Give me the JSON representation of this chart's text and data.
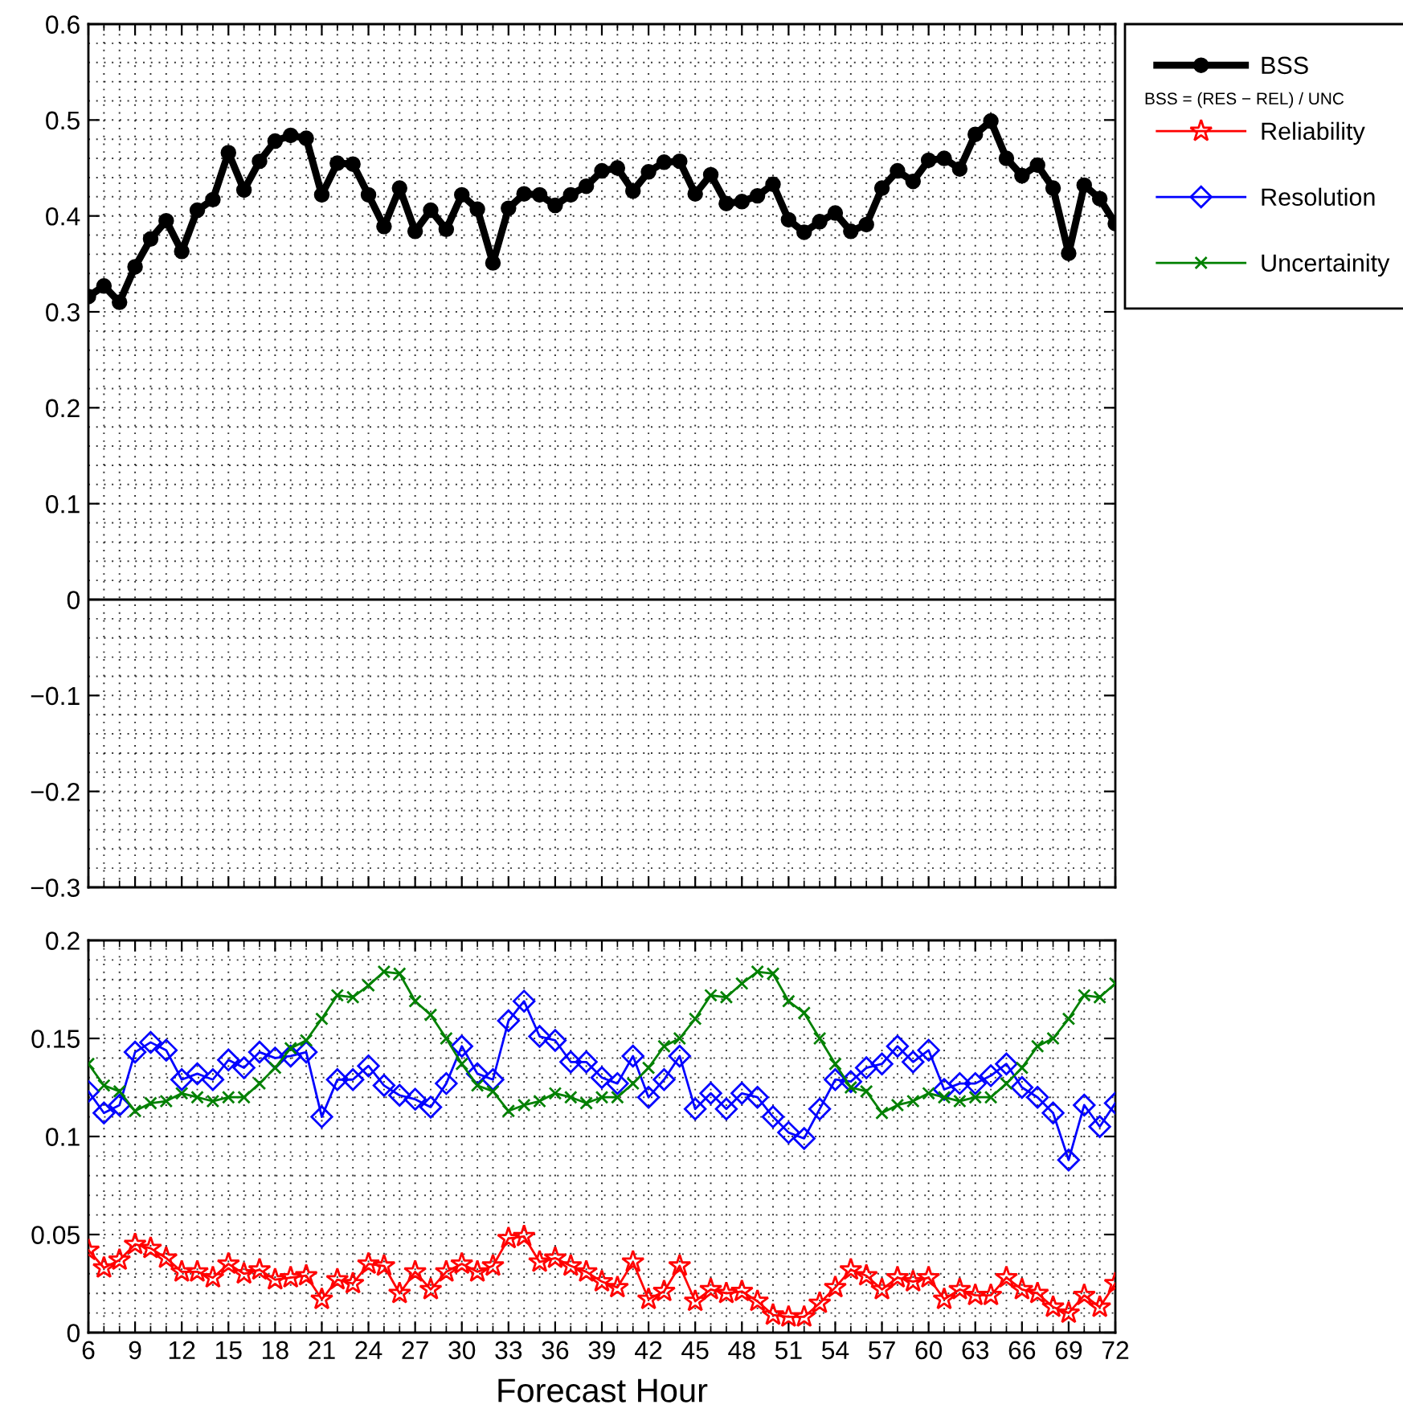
{
  "chart_data": [
    {
      "type": "line",
      "x": [
        6,
        7,
        8,
        9,
        10,
        11,
        12,
        13,
        14,
        15,
        16,
        17,
        18,
        19,
        20,
        21,
        22,
        23,
        24,
        25,
        26,
        27,
        28,
        29,
        30,
        31,
        32,
        33,
        34,
        35,
        36,
        37,
        38,
        39,
        40,
        41,
        42,
        43,
        44,
        45,
        46,
        47,
        48,
        49,
        50,
        51,
        52,
        53,
        54,
        55,
        56,
        57,
        58,
        59,
        60,
        61,
        62,
        63,
        64,
        65,
        66,
        67,
        68,
        69,
        70,
        71,
        72
      ],
      "series": [
        {
          "name": "BSS",
          "color": "#000000",
          "marker": "circle",
          "values": [
            0.316,
            0.327,
            0.31,
            0.347,
            0.376,
            0.395,
            0.363,
            0.406,
            0.417,
            0.466,
            0.427,
            0.457,
            0.478,
            0.484,
            0.481,
            0.422,
            0.455,
            0.454,
            0.422,
            0.389,
            0.429,
            0.384,
            0.406,
            0.386,
            0.422,
            0.407,
            0.351,
            0.408,
            0.423,
            0.422,
            0.411,
            0.422,
            0.431,
            0.447,
            0.45,
            0.426,
            0.446,
            0.456,
            0.457,
            0.423,
            0.443,
            0.413,
            0.415,
            0.421,
            0.433,
            0.396,
            0.383,
            0.394,
            0.403,
            0.384,
            0.391,
            0.429,
            0.447,
            0.436,
            0.458,
            0.46,
            0.449,
            0.485,
            0.499,
            0.46,
            0.442,
            0.453,
            0.429,
            0.361,
            0.432,
            0.418,
            0.392
          ]
        }
      ],
      "xlim": [
        6,
        72
      ],
      "xticks": [
        6,
        9,
        12,
        15,
        18,
        21,
        24,
        27,
        30,
        33,
        36,
        39,
        42,
        45,
        48,
        51,
        54,
        57,
        60,
        63,
        66,
        69,
        72
      ],
      "ylim": [
        -0.3,
        0.6
      ],
      "yticks": [
        {
          "value": -0.3,
          "label": "−0.3"
        },
        {
          "value": -0.2,
          "label": "−0.2"
        },
        {
          "value": -0.1,
          "label": "−0.1"
        },
        0,
        0.1,
        0.2,
        0.3,
        0.4,
        0.5,
        0.6
      ],
      "tick_labels": "y",
      "grid": true,
      "legend": "top right",
      "ref_lines": [
        {
          "axis": "y",
          "value": 0,
          "color": "#000000"
        }
      ],
      "annotations": [
        "BSS = (RES − REL) / UNC"
      ]
    },
    {
      "type": "line",
      "x": [
        6,
        7,
        8,
        9,
        10,
        11,
        12,
        13,
        14,
        15,
        16,
        17,
        18,
        19,
        20,
        21,
        22,
        23,
        24,
        25,
        26,
        27,
        28,
        29,
        30,
        31,
        32,
        33,
        34,
        35,
        36,
        37,
        38,
        39,
        40,
        41,
        42,
        43,
        44,
        45,
        46,
        47,
        48,
        49,
        50,
        51,
        52,
        53,
        54,
        55,
        56,
        57,
        58,
        59,
        60,
        61,
        62,
        63,
        64,
        65,
        66,
        67,
        68,
        69,
        70,
        71,
        72
      ],
      "series": [
        {
          "name": "Reliability",
          "color": "#ff0000",
          "marker": "star",
          "values": [
            0.042,
            0.033,
            0.037,
            0.045,
            0.043,
            0.038,
            0.031,
            0.031,
            0.028,
            0.035,
            0.03,
            0.032,
            0.027,
            0.028,
            0.029,
            0.017,
            0.027,
            0.025,
            0.035,
            0.034,
            0.02,
            0.031,
            0.022,
            0.031,
            0.035,
            0.031,
            0.034,
            0.048,
            0.049,
            0.036,
            0.038,
            0.034,
            0.031,
            0.026,
            0.023,
            0.036,
            0.017,
            0.021,
            0.034,
            0.016,
            0.022,
            0.02,
            0.021,
            0.016,
            0.009,
            0.008,
            0.008,
            0.015,
            0.023,
            0.032,
            0.029,
            0.022,
            0.028,
            0.026,
            0.028,
            0.017,
            0.022,
            0.019,
            0.019,
            0.028,
            0.022,
            0.02,
            0.013,
            0.01,
            0.019,
            0.013,
            0.025
          ]
        },
        {
          "name": "Resolution",
          "color": "#0000ff",
          "marker": "diamond",
          "values": [
            0.123,
            0.112,
            0.116,
            0.143,
            0.148,
            0.144,
            0.129,
            0.132,
            0.129,
            0.139,
            0.135,
            0.143,
            0.14,
            0.141,
            0.143,
            0.11,
            0.129,
            0.129,
            0.136,
            0.126,
            0.121,
            0.119,
            0.115,
            0.127,
            0.146,
            0.132,
            0.129,
            0.159,
            0.169,
            0.151,
            0.149,
            0.138,
            0.138,
            0.13,
            0.127,
            0.141,
            0.12,
            0.129,
            0.141,
            0.114,
            0.122,
            0.114,
            0.122,
            0.12,
            0.11,
            0.102,
            0.099,
            0.114,
            0.129,
            0.128,
            0.135,
            0.137,
            0.146,
            0.138,
            0.144,
            0.124,
            0.127,
            0.127,
            0.131,
            0.137,
            0.125,
            0.12,
            0.112,
            0.088,
            0.116,
            0.105,
            0.117
          ]
        },
        {
          "name": "Uncertainity",
          "color": "#008000",
          "marker": "cross",
          "values": [
            0.137,
            0.126,
            0.123,
            0.113,
            0.117,
            0.118,
            0.122,
            0.12,
            0.118,
            0.12,
            0.12,
            0.127,
            0.135,
            0.145,
            0.149,
            0.16,
            0.172,
            0.171,
            0.177,
            0.184,
            0.183,
            0.169,
            0.162,
            0.15,
            0.137,
            0.126,
            0.123,
            0.113,
            0.116,
            0.118,
            0.122,
            0.12,
            0.117,
            0.12,
            0.12,
            0.127,
            0.135,
            0.146,
            0.15,
            0.16,
            0.172,
            0.171,
            0.178,
            0.184,
            0.183,
            0.169,
            0.163,
            0.15,
            0.137,
            0.125,
            0.123,
            0.112,
            0.116,
            0.118,
            0.122,
            0.12,
            0.118,
            0.12,
            0.12,
            0.127,
            0.135,
            0.146,
            0.15,
            0.16,
            0.172,
            0.171,
            0.178
          ]
        }
      ],
      "xlabel": "Forecast Hour",
      "xlim": [
        6,
        72
      ],
      "xticks": [
        6,
        9,
        12,
        15,
        18,
        21,
        24,
        27,
        30,
        33,
        36,
        39,
        42,
        45,
        48,
        51,
        54,
        57,
        60,
        63,
        66,
        69,
        72
      ],
      "ylim": [
        0,
        0.2
      ],
      "yticks": [
        0,
        0.05,
        0.1,
        0.15,
        0.2
      ],
      "grid": true,
      "legend": "top right"
    }
  ]
}
